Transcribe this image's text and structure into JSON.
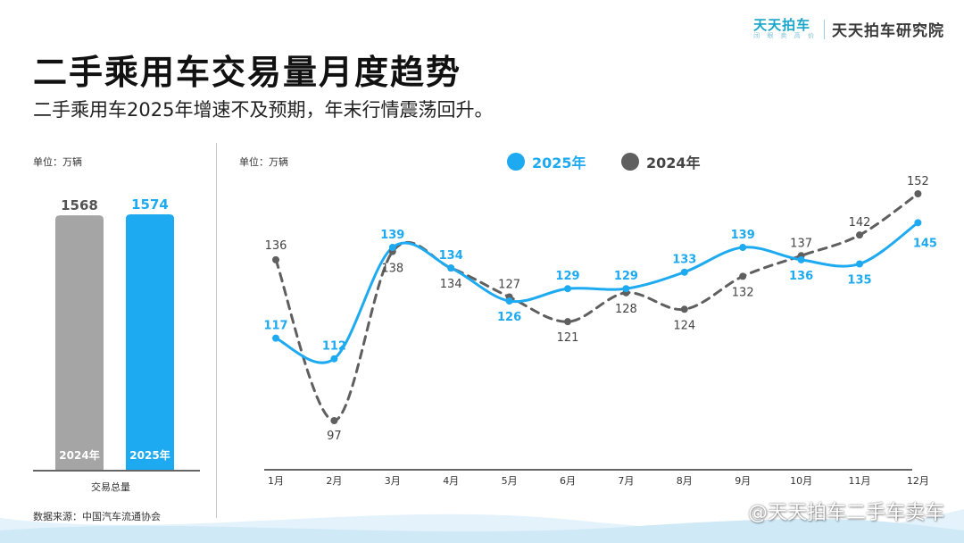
{
  "brand": {
    "logo_name": "天天拍车",
    "logo_slogan": "闭 眼 卖 高 价",
    "institute": "天天拍车研究院"
  },
  "header": {
    "title": "二手乘用车交易量月度趋势",
    "subtitle": "二手乘用车2025年增速不及预期，年末行情震荡回升。"
  },
  "colors": {
    "series_2025": "#1eaaf1",
    "series_2024": "#5f5f5f",
    "bar_2024": "#a5a5a5",
    "bar_2025": "#1eaaf1",
    "wave": "#cfe9f7"
  },
  "footer": {
    "source": "数据来源：中国汽车流通协会",
    "watermark": "@天天拍车二手车卖车"
  },
  "chart_data": [
    {
      "type": "bar",
      "unit_label": "单位：万辆",
      "categories": [
        "2024年",
        "2025年"
      ],
      "values": [
        1568,
        1574
      ],
      "xlabel": "交易总量",
      "ylim": [
        0,
        1700
      ]
    },
    {
      "type": "line",
      "unit_label": "单位：万辆",
      "x": [
        "1月",
        "2月",
        "3月",
        "4月",
        "5月",
        "6月",
        "7月",
        "8月",
        "9月",
        "10月",
        "11月",
        "12月"
      ],
      "ylim": [
        90,
        160
      ],
      "grid": false,
      "legend_position": "top",
      "series": [
        {
          "name": "2025年",
          "values": [
            117,
            112,
            139,
            134,
            126,
            129,
            129,
            133,
            139,
            136,
            135,
            145
          ]
        },
        {
          "name": "2024年",
          "values": [
            136,
            97,
            138,
            134,
            127,
            121,
            128,
            124,
            132,
            137,
            142,
            152
          ]
        }
      ]
    }
  ]
}
